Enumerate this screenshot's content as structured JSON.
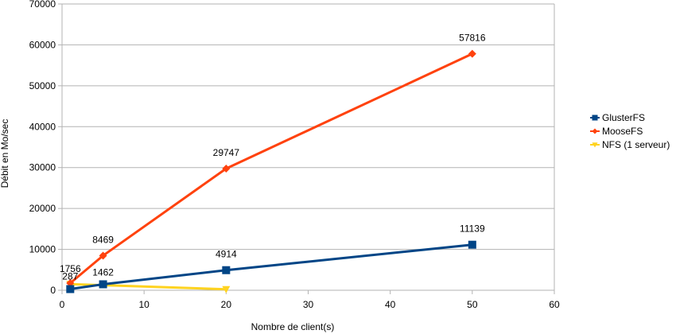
{
  "chart_data": {
    "type": "line",
    "xlabel": "Nombre de client(s)",
    "ylabel": "Débit en Mo/sec",
    "xlim": [
      0,
      60
    ],
    "ylim": [
      0,
      70000
    ],
    "xticks": [
      0,
      10,
      20,
      30,
      40,
      50,
      60
    ],
    "yticks": [
      0,
      10000,
      20000,
      30000,
      40000,
      50000,
      60000,
      70000
    ],
    "grid": "horizontal",
    "legend_position": "right",
    "series": [
      {
        "name": "GlusterFS",
        "color": "#004586",
        "marker": "square",
        "points": [
          {
            "x": 1,
            "y": 287,
            "label": "287"
          },
          {
            "x": 5,
            "y": 1462,
            "label": "1462"
          },
          {
            "x": 20,
            "y": 4914,
            "label": "4914"
          },
          {
            "x": 50,
            "y": 11139,
            "label": "11139"
          }
        ]
      },
      {
        "name": "MooseFS",
        "color": "#ff420e",
        "marker": "diamond",
        "points": [
          {
            "x": 1,
            "y": 1756,
            "label": "1756"
          },
          {
            "x": 5,
            "y": 8469,
            "label": "8469"
          },
          {
            "x": 20,
            "y": 29747,
            "label": "29747"
          },
          {
            "x": 50,
            "y": 57816,
            "label": "57816"
          }
        ]
      },
      {
        "name": "NFS (1 serveur)",
        "color": "#ffd320",
        "marker": "triangle-down",
        "points": [
          {
            "x": 1,
            "y": 1500
          },
          {
            "x": 20,
            "y": 250
          }
        ]
      }
    ]
  }
}
